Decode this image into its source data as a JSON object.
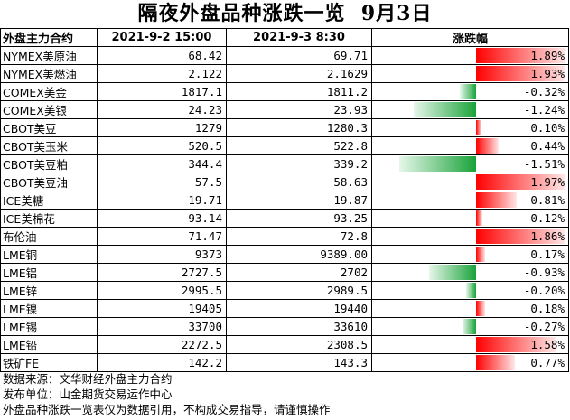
{
  "title": "隔夜外盘品种涨跌一览  9月3日",
  "headers": [
    "外盘主力合约",
    "2021-9-2 15:00",
    "2021-9-3 8:30",
    "涨跌幅"
  ],
  "colors": {
    "up": "#ff0000",
    "down": "#1aa33a"
  },
  "chart_data": {
    "type": "table",
    "columns": [
      "外盘主力合约",
      "2021-9-2 15:00",
      "2021-9-3 8:30",
      "涨跌幅"
    ],
    "rows": [
      {
        "name": "NYMEX美原油",
        "prev": "68.42",
        "curr": "69.71",
        "change": 1.89,
        "change_label": "1.89%"
      },
      {
        "name": "NYMEX美燃油",
        "prev": "2.122",
        "curr": "2.1629",
        "change": 1.93,
        "change_label": "1.93%"
      },
      {
        "name": "COMEX美金",
        "prev": "1817.1",
        "curr": "1811.2",
        "change": -0.32,
        "change_label": "-0.32%"
      },
      {
        "name": "COMEX美银",
        "prev": "24.23",
        "curr": "23.93",
        "change": -1.24,
        "change_label": "-1.24%"
      },
      {
        "name": "CBOT美豆",
        "prev": "1279",
        "curr": "1280.3",
        "change": 0.1,
        "change_label": "0.10%"
      },
      {
        "name": "CBOT美玉米",
        "prev": "520.5",
        "curr": "522.8",
        "change": 0.44,
        "change_label": "0.44%"
      },
      {
        "name": "CBOT美豆粕",
        "prev": "344.4",
        "curr": "339.2",
        "change": -1.51,
        "change_label": "-1.51%"
      },
      {
        "name": "CBOT美豆油",
        "prev": "57.5",
        "curr": "58.63",
        "change": 1.97,
        "change_label": "1.97%"
      },
      {
        "name": "ICE美糖",
        "prev": "19.71",
        "curr": "19.87",
        "change": 0.81,
        "change_label": "0.81%"
      },
      {
        "name": "ICE美棉花",
        "prev": "93.14",
        "curr": "93.25",
        "change": 0.12,
        "change_label": "0.12%"
      },
      {
        "name": "布伦油",
        "prev": "71.47",
        "curr": "72.8",
        "change": 1.86,
        "change_label": "1.86%"
      },
      {
        "name": "LME铜",
        "prev": "9373",
        "curr": "9389.00",
        "change": 0.17,
        "change_label": "0.17%"
      },
      {
        "name": "LME铝",
        "prev": "2727.5",
        "curr": "2702",
        "change": -0.93,
        "change_label": "-0.93%"
      },
      {
        "name": "LME锌",
        "prev": "2995.5",
        "curr": "2989.5",
        "change": -0.2,
        "change_label": "-0.20%"
      },
      {
        "name": "LME镍",
        "prev": "19405",
        "curr": "19440",
        "change": 0.18,
        "change_label": "0.18%"
      },
      {
        "name": "LME锡",
        "prev": "33700",
        "curr": "33610",
        "change": -0.27,
        "change_label": "-0.27%"
      },
      {
        "name": "LME铅",
        "prev": "2272.5",
        "curr": "2308.5",
        "change": 1.58,
        "change_label": "1.58%"
      },
      {
        "name": "铁矿FE",
        "prev": "142.2",
        "curr": "143.3",
        "change": 0.77,
        "change_label": "0.77%"
      }
    ]
  },
  "notes": [
    "数据来源：文华财经外盘主力合约",
    "发布单位：山金期货交易运作中心",
    "外盘品种涨跌一览表仅为数据引用，不构成交易指导，请谨慎操作"
  ]
}
